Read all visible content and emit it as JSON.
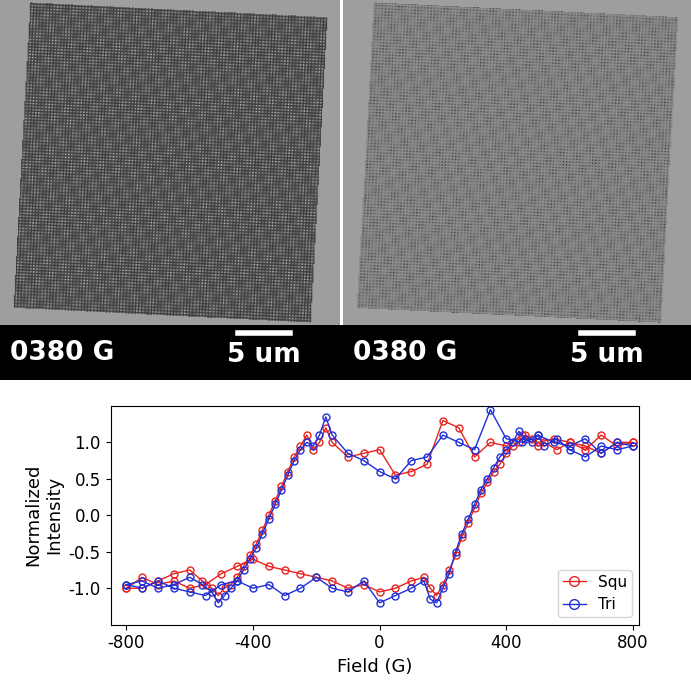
{
  "images": [
    {
      "field_label": "0380 G",
      "scale_label": "5 um"
    },
    {
      "field_label": "0380 G",
      "scale_label": "5 um"
    }
  ],
  "chart_data": {
    "type": "line",
    "x_label": "Field (G)",
    "y_label": "Normalized\nIntensity",
    "xlim": [
      -850,
      820
    ],
    "ylim": [
      -1.5,
      1.5
    ],
    "xticks": [
      -800,
      -400,
      0,
      400,
      800
    ],
    "yticks": [
      {
        "value": -1.0,
        "label": "-1.0"
      },
      {
        "value": -0.5,
        "label": "-0.5"
      },
      {
        "value": 0.0,
        "label": "0.0"
      },
      {
        "value": 0.5,
        "label": "0.5"
      },
      {
        "value": 1.0,
        "label": "1.0"
      }
    ],
    "legend": "lower right",
    "marker": "o",
    "series": [
      {
        "name": "Squ",
        "color": "#e8231f",
        "x": [
          -800,
          -750,
          -700,
          -650,
          -600,
          -550,
          -500,
          -450,
          -400,
          -350,
          -300,
          -250,
          -200,
          -150,
          -100,
          -50,
          0,
          50,
          100,
          140,
          160,
          180,
          200,
          220,
          240,
          260,
          280,
          300,
          320,
          340,
          360,
          380,
          400,
          420,
          440,
          460,
          480,
          500,
          520,
          560,
          600,
          650,
          700,
          750,
          800,
          800,
          750,
          700,
          650,
          600,
          550,
          500,
          450,
          400,
          350,
          300,
          250,
          200,
          150,
          100,
          50,
          0,
          -50,
          -100,
          -150,
          -170,
          -190,
          -210,
          -230,
          -250,
          -270,
          -290,
          -310,
          -330,
          -350,
          -370,
          -390,
          -410,
          -430,
          -450,
          -470,
          -490,
          -510,
          -530,
          -560,
          -600,
          -650,
          -700,
          -750,
          -800
        ],
        "values": [
          -1.0,
          -0.85,
          -0.95,
          -0.9,
          -1.0,
          -0.95,
          -0.8,
          -0.7,
          -0.6,
          -0.7,
          -0.75,
          -0.8,
          -0.85,
          -0.9,
          -1.0,
          -0.95,
          -1.05,
          -1.0,
          -0.9,
          -0.85,
          -1.0,
          -1.1,
          -0.95,
          -0.75,
          -0.55,
          -0.3,
          -0.1,
          0.1,
          0.3,
          0.45,
          0.6,
          0.7,
          0.85,
          0.95,
          1.0,
          1.1,
          1.05,
          0.95,
          1.0,
          0.9,
          1.0,
          0.95,
          0.85,
          1.0,
          1.0,
          1.0,
          0.95,
          1.1,
          0.9,
          1.0,
          1.05,
          1.0,
          1.1,
          0.95,
          1.0,
          0.8,
          1.2,
          1.3,
          0.7,
          0.6,
          0.55,
          0.9,
          0.85,
          0.8,
          1.0,
          1.2,
          1.0,
          0.9,
          1.1,
          0.95,
          0.8,
          0.6,
          0.4,
          0.2,
          0.0,
          -0.2,
          -0.4,
          -0.55,
          -0.7,
          -0.85,
          -0.95,
          -1.0,
          -1.1,
          -1.0,
          -0.9,
          -0.75,
          -0.8,
          -0.9,
          -1.0,
          -1.0
        ]
      },
      {
        "name": "Tri",
        "color": "#1f2fd6",
        "x": [
          -800,
          -750,
          -700,
          -650,
          -600,
          -550,
          -500,
          -450,
          -400,
          -350,
          -300,
          -250,
          -200,
          -150,
          -100,
          -50,
          0,
          50,
          100,
          140,
          160,
          180,
          200,
          220,
          240,
          260,
          280,
          300,
          320,
          340,
          360,
          380,
          400,
          420,
          440,
          460,
          480,
          500,
          520,
          560,
          600,
          650,
          700,
          750,
          800,
          800,
          750,
          700,
          650,
          600,
          550,
          500,
          450,
          400,
          350,
          300,
          250,
          200,
          150,
          100,
          50,
          0,
          -50,
          -100,
          -150,
          -170,
          -190,
          -210,
          -230,
          -250,
          -270,
          -290,
          -310,
          -330,
          -350,
          -370,
          -390,
          -410,
          -430,
          -450,
          -470,
          -490,
          -510,
          -530,
          -560,
          -600,
          -650,
          -700,
          -750,
          -800
        ],
        "values": [
          -0.95,
          -1.0,
          -0.9,
          -1.0,
          -1.05,
          -1.1,
          -0.95,
          -0.9,
          -1.0,
          -0.95,
          -1.1,
          -1.0,
          -0.85,
          -1.0,
          -1.05,
          -0.9,
          -1.2,
          -1.1,
          -1.0,
          -0.9,
          -1.15,
          -1.2,
          -1.0,
          -0.8,
          -0.5,
          -0.25,
          -0.05,
          0.15,
          0.35,
          0.5,
          0.65,
          0.8,
          0.9,
          1.0,
          1.15,
          1.05,
          1.0,
          1.1,
          0.95,
          1.05,
          0.9,
          0.8,
          0.95,
          0.9,
          0.95,
          0.95,
          1.0,
          0.85,
          1.05,
          0.95,
          1.0,
          1.1,
          1.0,
          1.05,
          1.45,
          0.9,
          1.0,
          1.1,
          0.8,
          0.75,
          0.5,
          0.6,
          0.75,
          0.85,
          1.1,
          1.35,
          1.1,
          0.95,
          1.0,
          0.9,
          0.75,
          0.55,
          0.35,
          0.15,
          -0.05,
          -0.25,
          -0.45,
          -0.6,
          -0.75,
          -0.9,
          -1.0,
          -1.1,
          -1.2,
          -1.05,
          -0.95,
          -0.85,
          -0.95,
          -1.0,
          -0.9,
          -0.95
        ]
      }
    ]
  }
}
